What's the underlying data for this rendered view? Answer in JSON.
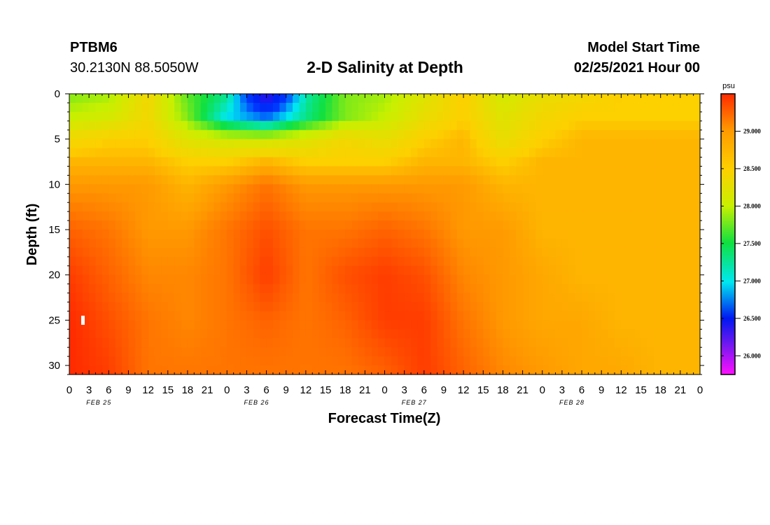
{
  "header": {
    "station_id": "PTBM6",
    "coordinates": "30.2130N 88.5050W",
    "title": "2-D Salinity at Depth",
    "model_start_label": "Model Start Time",
    "model_start_value": "02/25/2021 Hour 00"
  },
  "chart_data": {
    "type": "heatmap",
    "title": "2-D Salinity at Depth",
    "xlabel": "Forecast Time(Z)",
    "ylabel": "Depth (ft)",
    "x_range_hours": [
      0,
      96
    ],
    "x_tick_labels": [
      "0",
      "3",
      "6",
      "9",
      "12",
      "15",
      "18",
      "21",
      "0",
      "3",
      "6",
      "9",
      "12",
      "15",
      "18",
      "21",
      "0",
      "3",
      "6",
      "9",
      "12",
      "15",
      "18",
      "21",
      "0",
      "3",
      "6",
      "9",
      "12",
      "15",
      "18",
      "21",
      "0"
    ],
    "date_labels": [
      "FEB 25",
      "FEB 26",
      "FEB 27",
      "FEB 28"
    ],
    "ylim": [
      0,
      31
    ],
    "y_ticks": [
      0,
      5,
      10,
      15,
      20,
      25,
      30
    ],
    "y_tick_labels": [
      "0",
      "5",
      "10",
      "15",
      "20",
      "25",
      "30"
    ],
    "colorbar": {
      "unit": "psu",
      "range": [
        25.75,
        29.5
      ],
      "tick_values": [
        29.0,
        28.5,
        28.0,
        27.5,
        27.0,
        26.5,
        26.0
      ],
      "tick_labels": [
        "29.000",
        "28.500",
        "28.000",
        "27.500",
        "27.000",
        "26.500",
        "26.000"
      ]
    },
    "x_hours": [
      0,
      6,
      12,
      18,
      24,
      30,
      36,
      42,
      48,
      54,
      60,
      66,
      72,
      78,
      84,
      90,
      96
    ],
    "y_depths": [
      0,
      2.5,
      5,
      7.5,
      10,
      15,
      20,
      25,
      31
    ],
    "values": [
      [
        28.3,
        28.4,
        28.9,
        28.2,
        27.8,
        26.1,
        27.7,
        28.3,
        28.4,
        28.7,
        29.0,
        28.6,
        28.8,
        28.9,
        29.0,
        29.0,
        29.0
      ],
      [
        28.5,
        28.6,
        28.9,
        28.3,
        27.5,
        27.1,
        27.8,
        28.3,
        28.5,
        28.8,
        29.0,
        28.7,
        28.9,
        29.0,
        29.0,
        29.0,
        29.0
      ],
      [
        28.9,
        29.0,
        29.0,
        28.7,
        28.6,
        28.6,
        28.7,
        28.9,
        28.8,
        29.0,
        29.1,
        28.8,
        29.0,
        29.1,
        29.1,
        29.1,
        29.1
      ],
      [
        29.1,
        29.1,
        29.1,
        29.0,
        29.0,
        29.1,
        29.0,
        29.0,
        29.0,
        29.1,
        29.1,
        29.0,
        29.1,
        29.1,
        29.1,
        29.1,
        29.1
      ],
      [
        29.2,
        29.2,
        29.2,
        29.1,
        29.2,
        29.3,
        29.2,
        29.2,
        29.2,
        29.2,
        29.2,
        29.1,
        29.1,
        29.1,
        29.1,
        29.1,
        29.1
      ],
      [
        29.35,
        29.3,
        29.2,
        29.2,
        29.3,
        29.4,
        29.3,
        29.3,
        29.35,
        29.3,
        29.2,
        29.2,
        29.1,
        29.1,
        29.1,
        29.1,
        29.1
      ],
      [
        29.45,
        29.35,
        29.25,
        29.25,
        29.3,
        29.45,
        29.3,
        29.4,
        29.45,
        29.4,
        29.25,
        29.2,
        29.15,
        29.1,
        29.1,
        29.1,
        29.1
      ],
      [
        29.5,
        29.4,
        29.3,
        29.25,
        29.3,
        29.35,
        29.3,
        29.35,
        29.45,
        29.45,
        29.3,
        29.2,
        29.15,
        29.15,
        29.1,
        29.1,
        29.1
      ],
      [
        29.5,
        29.45,
        29.3,
        29.3,
        29.3,
        29.3,
        29.3,
        29.3,
        29.35,
        29.45,
        29.35,
        29.25,
        29.2,
        29.15,
        29.15,
        29.1,
        29.1
      ]
    ]
  }
}
